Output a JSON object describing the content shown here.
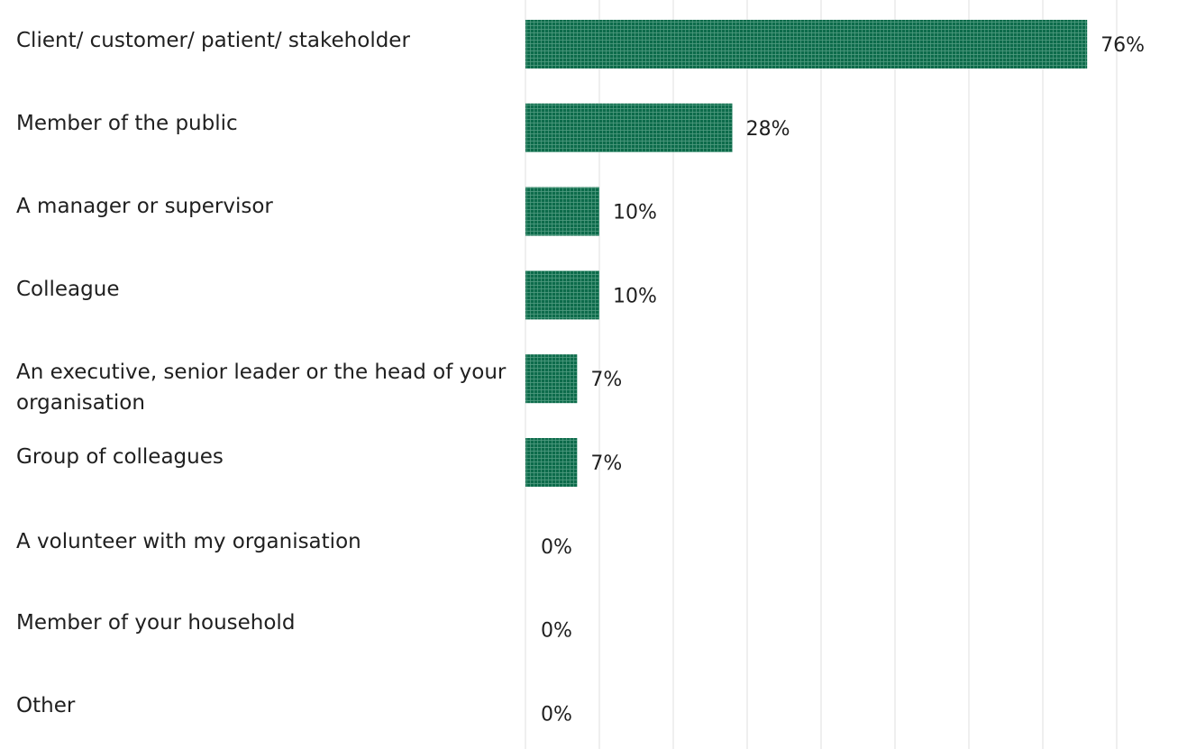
{
  "chart_data": {
    "type": "bar",
    "orientation": "horizontal",
    "title": "",
    "xlabel": "",
    "ylabel": "",
    "xlim": [
      0,
      80
    ],
    "grid": true,
    "legend": "none",
    "bar_color": "#0d6b4b",
    "value_suffix": "%",
    "categories": [
      "Client/ customer/ patient/ stakeholder",
      "Member of the public",
      "A manager or supervisor",
      "Colleague",
      "An executive, senior leader or the head of your organisation",
      "Group of colleagues",
      "A volunteer with my organisation",
      "Member of your household",
      "Other"
    ],
    "values": [
      76,
      28,
      10,
      10,
      7,
      7,
      0,
      0,
      0
    ],
    "value_labels": [
      "76%",
      "28%",
      "10%",
      "10%",
      "7%",
      "7%",
      "0%",
      "0%",
      "0%"
    ]
  }
}
